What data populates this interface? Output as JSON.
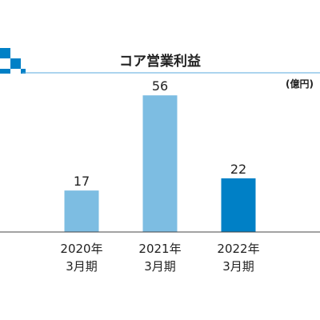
{
  "header": {
    "title": "コア営業利益",
    "unit": "(億円)"
  },
  "colors": {
    "accent": "#0080c6",
    "bar_past": "#7dbde2",
    "bar_current": "#0080c6",
    "axis": "#444444",
    "text": "#222222"
  },
  "chart_data": {
    "type": "bar",
    "title": "コア営業利益",
    "xlabel": "",
    "ylabel": "(億円)",
    "categories": [
      {
        "year": "2020年",
        "period": "3月期"
      },
      {
        "year": "2021年",
        "period": "3月期"
      },
      {
        "year": "2022年",
        "period": "3月期"
      }
    ],
    "values": [
      17,
      56,
      22
    ],
    "ylim": [
      0,
      60
    ],
    "grid": false,
    "highlight_index": 2
  }
}
